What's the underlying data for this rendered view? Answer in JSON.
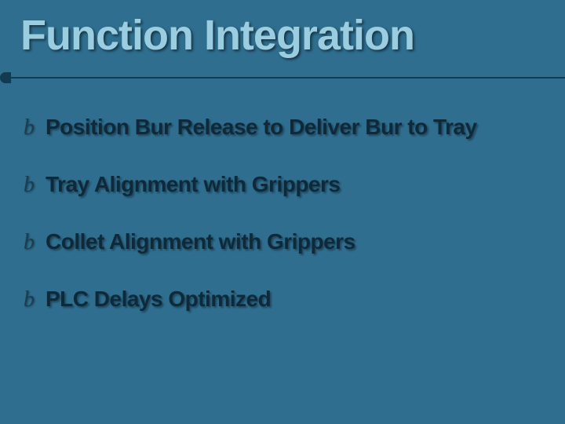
{
  "slide": {
    "title": "Function Integration",
    "title_color": "#9bcde0",
    "title_fontsize": 54,
    "background_color": "#2f6e8f",
    "divider_color": "#123a50",
    "bullet_glyph": "b",
    "bullet_glyph_color": "#1a3d50",
    "bullet_text_color": "#0e2a3a",
    "bullet_fontsize": 28,
    "bullets": [
      "Position Bur Release to Deliver Bur to Tray",
      "Tray Alignment with Grippers",
      "Collet Alignment with Grippers",
      "PLC Delays Optimized"
    ]
  }
}
